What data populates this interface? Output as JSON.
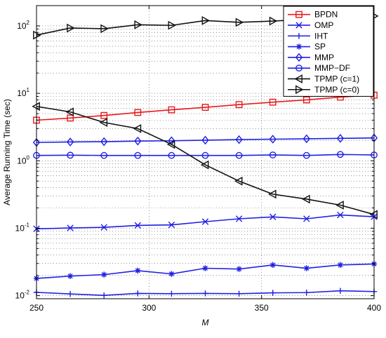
{
  "chart_data": {
    "type": "line",
    "title": "",
    "xlabel": "M",
    "ylabel": "Average Running Time (sec)",
    "x": [
      250,
      265,
      280,
      295,
      310,
      325,
      340,
      355,
      370,
      385,
      400
    ],
    "xlim": [
      250,
      400
    ],
    "xticks": [
      250,
      300,
      350,
      400
    ],
    "xtick_labels": [
      "250",
      "300",
      "350",
      "400"
    ],
    "yscale": "log",
    "ylim": [
      0.009,
      200
    ],
    "yticks": [
      {
        "value": 0.01,
        "base": "10",
        "exp": "-2"
      },
      {
        "value": 0.1,
        "base": "10",
        "exp": "-1"
      },
      {
        "value": 1,
        "base": "10",
        "exp": "0"
      },
      {
        "value": 10,
        "base": "10",
        "exp": "1"
      },
      {
        "value": 100,
        "base": "10",
        "exp": "2"
      }
    ],
    "grid": true,
    "legend_position": "top-right",
    "series": [
      {
        "name": "BPDN",
        "color": "#e8191c",
        "marker": "square",
        "values": [
          4.0,
          4.3,
          4.7,
          5.2,
          5.7,
          6.2,
          6.8,
          7.4,
          8.0,
          8.8,
          9.4
        ]
      },
      {
        "name": "OMP",
        "color": "#1f1fe6",
        "marker": "x",
        "values": [
          null,
          null,
          null,
          null,
          null,
          null,
          null,
          null,
          null,
          null,
          null
        ]
      },
      {
        "name": "IHT",
        "color": "#1f1fe6",
        "marker": "plus",
        "values": [
          0.0112,
          0.0106,
          0.0101,
          0.0108,
          0.0107,
          0.0108,
          0.0107,
          0.011,
          0.0111,
          0.0118,
          0.0115
        ]
      },
      {
        "name": "SP",
        "color": "#1f1fe6",
        "marker": "star",
        "values": [
          0.018,
          0.0195,
          0.0205,
          0.0235,
          0.021,
          0.0255,
          0.0248,
          0.0285,
          0.0255,
          0.0285,
          0.0295
        ]
      },
      {
        "name": "MMP",
        "color": "#1f1fe6",
        "marker": "diamond",
        "values": [
          1.87,
          1.9,
          1.92,
          1.96,
          1.98,
          2.02,
          2.06,
          2.09,
          2.12,
          2.15,
          2.18
        ]
      },
      {
        "name": "MMP−DF",
        "color": "#1f1fe6",
        "marker": "circle",
        "values": [
          1.2,
          1.21,
          1.2,
          1.2,
          1.2,
          1.2,
          1.2,
          1.22,
          1.2,
          1.24,
          1.22
        ]
      },
      {
        "name": "TPMP (c=1)",
        "color": "#111111",
        "marker": "triangle-left",
        "values": [
          6.4,
          5.3,
          3.7,
          3.0,
          1.75,
          0.87,
          0.5,
          0.32,
          0.27,
          0.22,
          0.16
        ]
      },
      {
        "name": "TPMP (c=0)",
        "color": "#111111",
        "marker": "triangle-right",
        "values": [
          73,
          93,
          91,
          104,
          102,
          120,
          113,
          118,
          125,
          125,
          140
        ]
      },
      {
        "name": "",
        "color": "#1f1fe6",
        "marker": "x",
        "values": [
          0.098,
          0.101,
          0.103,
          0.11,
          0.112,
          0.125,
          0.138,
          0.147,
          0.138,
          0.157,
          0.148
        ]
      }
    ]
  }
}
